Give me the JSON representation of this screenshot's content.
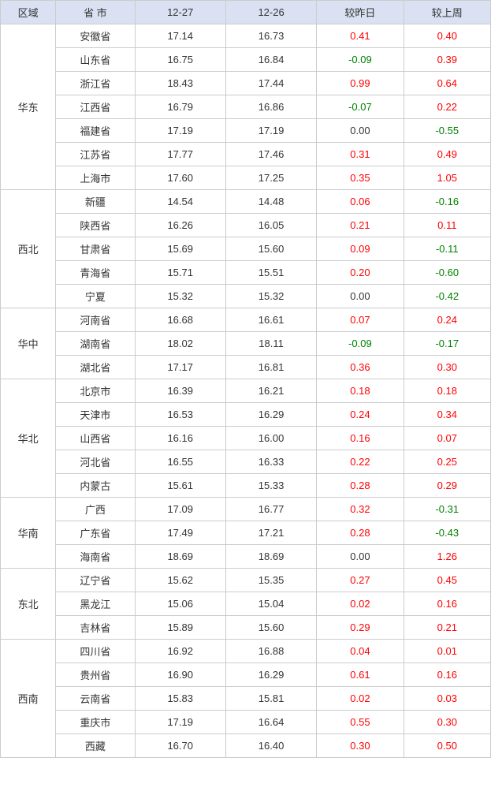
{
  "headers": {
    "region": "区域",
    "province": "省 市",
    "d27": "12-27",
    "d26": "12-26",
    "yesterday": "较昨日",
    "lastweek": "较上周"
  },
  "colors": {
    "header_bg": "#d9e1f2",
    "border": "#cccccc",
    "positive": "#ff0000",
    "negative": "#008000",
    "zero": "#333333"
  },
  "regions": [
    {
      "name": "华东",
      "rows": [
        {
          "province": "安徽省",
          "d27": "17.14",
          "d26": "16.73",
          "yesterday": "0.41",
          "lastweek": "0.40"
        },
        {
          "province": "山东省",
          "d27": "16.75",
          "d26": "16.84",
          "yesterday": "-0.09",
          "lastweek": "0.39"
        },
        {
          "province": "浙江省",
          "d27": "18.43",
          "d26": "17.44",
          "yesterday": "0.99",
          "lastweek": "0.64"
        },
        {
          "province": "江西省",
          "d27": "16.79",
          "d26": "16.86",
          "yesterday": "-0.07",
          "lastweek": "0.22"
        },
        {
          "province": "福建省",
          "d27": "17.19",
          "d26": "17.19",
          "yesterday": "0.00",
          "lastweek": "-0.55"
        },
        {
          "province": "江苏省",
          "d27": "17.77",
          "d26": "17.46",
          "yesterday": "0.31",
          "lastweek": "0.49"
        },
        {
          "province": "上海市",
          "d27": "17.60",
          "d26": "17.25",
          "yesterday": "0.35",
          "lastweek": "1.05"
        }
      ]
    },
    {
      "name": "西北",
      "rows": [
        {
          "province": "新疆",
          "d27": "14.54",
          "d26": "14.48",
          "yesterday": "0.06",
          "lastweek": "-0.16"
        },
        {
          "province": "陕西省",
          "d27": "16.26",
          "d26": "16.05",
          "yesterday": "0.21",
          "lastweek": "0.11"
        },
        {
          "province": "甘肃省",
          "d27": "15.69",
          "d26": "15.60",
          "yesterday": "0.09",
          "lastweek": "-0.11"
        },
        {
          "province": "青海省",
          "d27": "15.71",
          "d26": "15.51",
          "yesterday": "0.20",
          "lastweek": "-0.60"
        },
        {
          "province": "宁夏",
          "d27": "15.32",
          "d26": "15.32",
          "yesterday": "0.00",
          "lastweek": "-0.42"
        }
      ]
    },
    {
      "name": "华中",
      "rows": [
        {
          "province": "河南省",
          "d27": "16.68",
          "d26": "16.61",
          "yesterday": "0.07",
          "lastweek": "0.24"
        },
        {
          "province": "湖南省",
          "d27": "18.02",
          "d26": "18.11",
          "yesterday": "-0.09",
          "lastweek": "-0.17"
        },
        {
          "province": "湖北省",
          "d27": "17.17",
          "d26": "16.81",
          "yesterday": "0.36",
          "lastweek": "0.30"
        }
      ]
    },
    {
      "name": "华北",
      "rows": [
        {
          "province": "北京市",
          "d27": "16.39",
          "d26": "16.21",
          "yesterday": "0.18",
          "lastweek": "0.18"
        },
        {
          "province": "天津市",
          "d27": "16.53",
          "d26": "16.29",
          "yesterday": "0.24",
          "lastweek": "0.34"
        },
        {
          "province": "山西省",
          "d27": "16.16",
          "d26": "16.00",
          "yesterday": "0.16",
          "lastweek": "0.07"
        },
        {
          "province": "河北省",
          "d27": "16.55",
          "d26": "16.33",
          "yesterday": "0.22",
          "lastweek": "0.25"
        },
        {
          "province": "内蒙古",
          "d27": "15.61",
          "d26": "15.33",
          "yesterday": "0.28",
          "lastweek": "0.29"
        }
      ]
    },
    {
      "name": "华南",
      "rows": [
        {
          "province": "广西",
          "d27": "17.09",
          "d26": "16.77",
          "yesterday": "0.32",
          "lastweek": "-0.31"
        },
        {
          "province": "广东省",
          "d27": "17.49",
          "d26": "17.21",
          "yesterday": "0.28",
          "lastweek": "-0.43"
        },
        {
          "province": "海南省",
          "d27": "18.69",
          "d26": "18.69",
          "yesterday": "0.00",
          "lastweek": "1.26"
        }
      ]
    },
    {
      "name": "东北",
      "rows": [
        {
          "province": "辽宁省",
          "d27": "15.62",
          "d26": "15.35",
          "yesterday": "0.27",
          "lastweek": "0.45"
        },
        {
          "province": "黑龙江",
          "d27": "15.06",
          "d26": "15.04",
          "yesterday": "0.02",
          "lastweek": "0.16"
        },
        {
          "province": "吉林省",
          "d27": "15.89",
          "d26": "15.60",
          "yesterday": "0.29",
          "lastweek": "0.21"
        }
      ]
    },
    {
      "name": "西南",
      "rows": [
        {
          "province": "四川省",
          "d27": "16.92",
          "d26": "16.88",
          "yesterday": "0.04",
          "lastweek": "0.01"
        },
        {
          "province": "贵州省",
          "d27": "16.90",
          "d26": "16.29",
          "yesterday": "0.61",
          "lastweek": "0.16"
        },
        {
          "province": "云南省",
          "d27": "15.83",
          "d26": "15.81",
          "yesterday": "0.02",
          "lastweek": "0.03"
        },
        {
          "province": "重庆市",
          "d27": "17.19",
          "d26": "16.64",
          "yesterday": "0.55",
          "lastweek": "0.30"
        },
        {
          "province": "西藏",
          "d27": "16.70",
          "d26": "16.40",
          "yesterday": "0.30",
          "lastweek": "0.50"
        }
      ]
    }
  ]
}
